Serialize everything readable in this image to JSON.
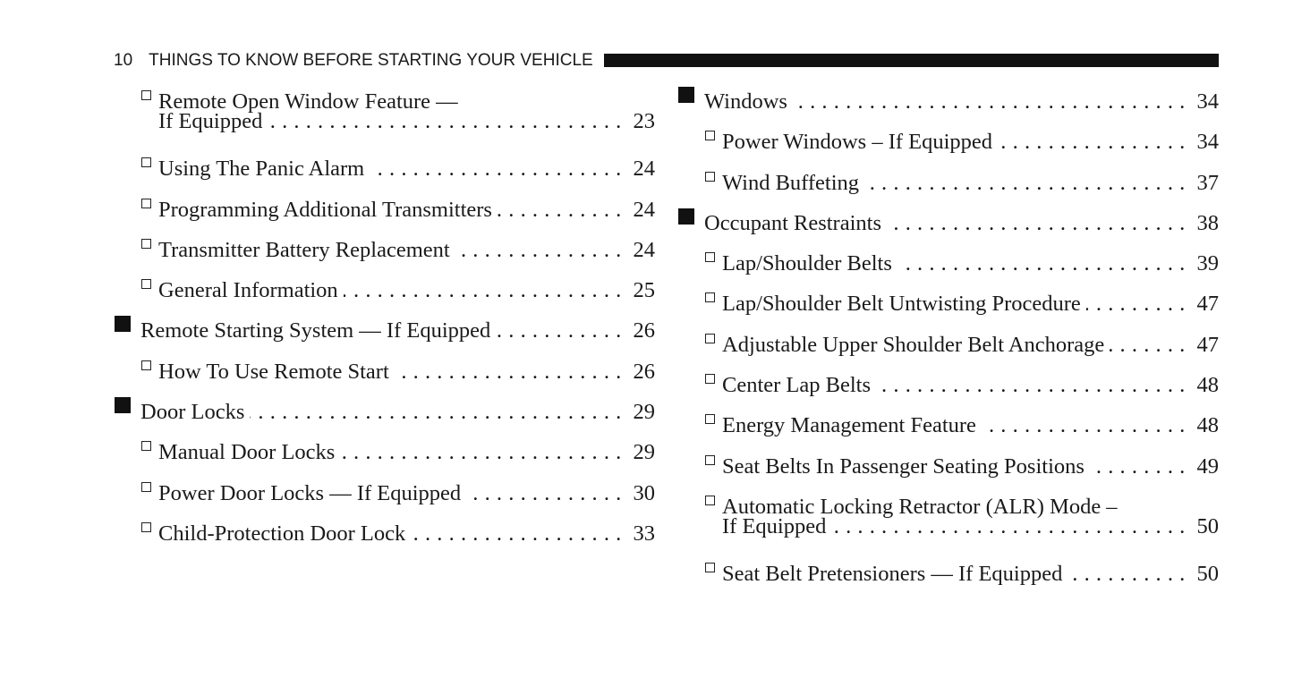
{
  "header": {
    "page_number": "10",
    "title": "THINGS TO KNOW BEFORE STARTING YOUR VEHICLE"
  },
  "toc_left": [
    {
      "level": "sub",
      "lines": [
        "Remote Open Window Feature —",
        "If Equipped"
      ],
      "page": "23"
    },
    {
      "level": "sub",
      "lines": [
        "Using The Panic Alarm"
      ],
      "page": "24"
    },
    {
      "level": "sub",
      "lines": [
        "Programming Additional Transmitters"
      ],
      "page": "24"
    },
    {
      "level": "sub",
      "lines": [
        "Transmitter Battery Replacement"
      ],
      "page": "24"
    },
    {
      "level": "sub",
      "lines": [
        "General Information"
      ],
      "page": "25"
    },
    {
      "level": "top",
      "lines": [
        "Remote Starting System — If Equipped"
      ],
      "page": "26"
    },
    {
      "level": "sub",
      "lines": [
        "How To Use Remote Start"
      ],
      "page": "26"
    },
    {
      "level": "top",
      "lines": [
        "Door Locks"
      ],
      "page": "29"
    },
    {
      "level": "sub",
      "lines": [
        "Manual Door Locks"
      ],
      "page": "29"
    },
    {
      "level": "sub",
      "lines": [
        "Power Door Locks — If Equipped"
      ],
      "page": "30"
    },
    {
      "level": "sub",
      "lines": [
        "Child-Protection Door Lock"
      ],
      "page": "33"
    }
  ],
  "toc_right": [
    {
      "level": "top",
      "lines": [
        "Windows"
      ],
      "page": "34"
    },
    {
      "level": "sub",
      "lines": [
        "Power Windows – If Equipped"
      ],
      "page": "34"
    },
    {
      "level": "sub",
      "lines": [
        "Wind Buffeting"
      ],
      "page": "37"
    },
    {
      "level": "top",
      "lines": [
        "Occupant Restraints"
      ],
      "page": "38"
    },
    {
      "level": "sub",
      "lines": [
        "Lap/Shoulder Belts"
      ],
      "page": "39"
    },
    {
      "level": "sub",
      "lines": [
        "Lap/Shoulder Belt Untwisting Procedure"
      ],
      "page": "47"
    },
    {
      "level": "sub",
      "lines": [
        "Adjustable Upper Shoulder Belt Anchorage"
      ],
      "page": "47"
    },
    {
      "level": "sub",
      "lines": [
        "Center Lap Belts"
      ],
      "page": "48"
    },
    {
      "level": "sub",
      "lines": [
        "Energy Management Feature"
      ],
      "page": "48"
    },
    {
      "level": "sub",
      "lines": [
        "Seat Belts In Passenger Seating Positions"
      ],
      "page": "49"
    },
    {
      "level": "sub",
      "lines": [
        "Automatic Locking Retractor (ALR) Mode –",
        "If Equipped"
      ],
      "page": "50"
    },
    {
      "level": "sub",
      "lines": [
        "Seat Belt Pretensioners — If Equipped"
      ],
      "page": "50"
    }
  ]
}
